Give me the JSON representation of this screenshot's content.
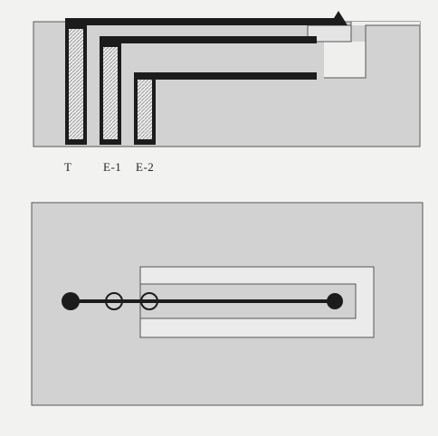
{
  "figure": {
    "labels": [
      "T",
      "E-1",
      "E-2"
    ]
  },
  "colors": {
    "background": "#f2f2f0",
    "block": "#d2d2d2",
    "slot": "#ebebeb",
    "line": "#1c1c1c",
    "hatch": "#9a9a9a"
  },
  "icons": {
    "large-electrode": "filled-circle",
    "small-electrode": "open-circle",
    "tip": "triangle"
  }
}
